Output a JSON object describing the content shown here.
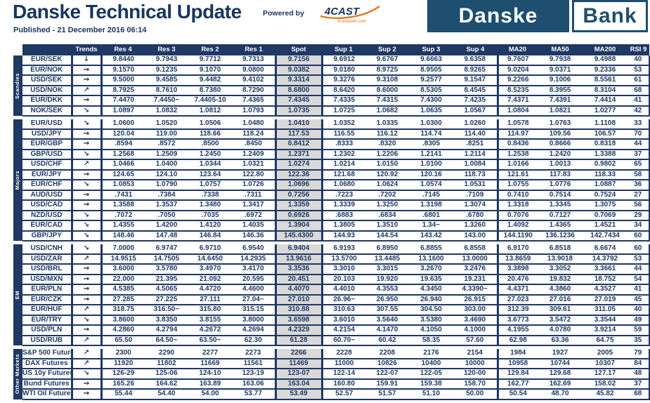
{
  "page": {
    "title": "Danske Technical Update",
    "published": "Published - 21 December 2016 06:14",
    "powered_by_label": "Powered by",
    "cast_logo": {
      "name": "4CAST",
      "sub": "4castweb.com"
    },
    "bank_logo": {
      "first": "Danske",
      "second": "Bank"
    }
  },
  "colors": {
    "navy": "#1f3864",
    "brand_blue": "#1e4e70",
    "spot_bg": "#d9d9d9",
    "arrow_red": "#c00000",
    "arrow_amber": "#ffb400",
    "arrow_green": "#57a639",
    "cast_orange": "#e87722"
  },
  "table": {
    "columns": [
      "Trends",
      "Res 4",
      "Res 3",
      "Res 2",
      "Res 1",
      "Spot",
      "Sup 1",
      "Sup 2",
      "Sup 3",
      "Sup 4",
      "MA20",
      "MA50",
      "MA200",
      "RSI 9"
    ],
    "trend_glyphs": {
      "down": "↓",
      "flat": "→",
      "up": "↗",
      "dslight": "↘"
    },
    "groups": [
      {
        "label": "Scandies",
        "rows": [
          {
            "pair": "EUR/SEK",
            "trend": "down",
            "values": [
              "9.8440",
              "9.7943",
              "9.7712",
              "9.7313",
              "9.7156",
              "9.6912",
              "9.6767",
              "9.6663",
              "9.6358",
              "9.7607",
              "9.7938",
              "9.4988",
              "40"
            ]
          },
          {
            "pair": "EUR/NOK",
            "trend": "flat",
            "values": [
              "9.1570",
              "9.1235",
              "9.1070",
              "9.0800",
              "9.0382",
              "9.0180",
              "8.9725",
              "8.9505",
              "8.9265",
              "9.0204",
              "9.0371",
              "9.2336",
              "53"
            ]
          },
          {
            "pair": "USD/SEK",
            "trend": "flat",
            "values": [
              "9.5000",
              "9.4585",
              "9.4482",
              "9.4102",
              "9.3314",
              "9.3276",
              "9.3108",
              "9.2577",
              "9.1547",
              "9.2266",
              "9.1006",
              "8.5561",
              "61"
            ]
          },
          {
            "pair": "USD/NOK",
            "trend": "up",
            "values": [
              "8.7925",
              "8.7610",
              "8.7380",
              "8.7290",
              "8.6800",
              "8.6420",
              "8.6000",
              "8.5305",
              "8.4545",
              "8.5235",
              "8.3955",
              "8.3104",
              "68"
            ]
          },
          {
            "pair": "EUR/DKK",
            "trend": "flat",
            "values": [
              "7.4470",
              "7.4450~",
              "7.4405-10",
              "7.4365",
              "7.4345",
              "7.4335",
              "7.4315",
              "7.4300",
              "7.4235",
              "7.4371",
              "7.4391",
              "7.4414",
              "41"
            ]
          },
          {
            "pair": "NOK/SEK",
            "trend": "dslight",
            "values": [
              "1.0897",
              "1.0832",
              "1.0812",
              "1.0793",
              "1.0735",
              "1.0725",
              "1.0682",
              "1.0635",
              "1.0567",
              "1.0804",
              "1.0821",
              "1.0277",
              "42"
            ]
          }
        ]
      },
      {
        "label": "Majors",
        "rows": [
          {
            "pair": "EUR/USD",
            "trend": "dslight",
            "values": [
              "1.0600",
              "1.0520",
              "1.0506",
              "1.0480",
              "1.0410",
              "1.0352",
              "1.0335",
              "1.0300",
              "1.0260",
              "1.0578",
              "1.0763",
              "1.1108",
              "33"
            ]
          },
          {
            "pair": "USD/JPY",
            "trend": "flat",
            "values": [
              "120.04",
              "119.00",
              "118.66",
              "118.24",
              "117.53",
              "116.55",
              "116.12",
              "114.74",
              "114.40",
              "114.97",
              "109.56",
              "106.57",
              "70"
            ]
          },
          {
            "pair": "EUR/GBP",
            "trend": "flat",
            "values": [
              ".8594",
              ".8572",
              ".8500",
              ".8450",
              "0.8412",
              ".8333",
              ".8320",
              ".8305",
              ".8251",
              "0.8436",
              "0.8666",
              "0.8318",
              "44"
            ]
          },
          {
            "pair": "GBP/USD",
            "trend": "dslight",
            "values": [
              "1.2568",
              "1.2509",
              "1.2450",
              "1.2409",
              "1.2371",
              "1.2302",
              "1.2206",
              "1.2141",
              "1.2114",
              "1.2538",
              "1.2420",
              "1.3388",
              "37"
            ]
          },
          {
            "pair": "USD/CHF",
            "trend": "up",
            "values": [
              "1.0466",
              "1.0400",
              "1.0344",
              "1.0321",
              "1.0274",
              "1.0214",
              "1.0150",
              "1.0100",
              "1.0084",
              "1.0166",
              "1.0013",
              "0.9802",
              "65"
            ]
          },
          {
            "pair": "EUR/JPY",
            "trend": "flat",
            "values": [
              "124.65",
              "124.10",
              "123.64",
              "122.80",
              "122.36",
              "121.68",
              "120.92",
              "120.16",
              "118.73",
              "121.61",
              "117.83",
              "118.33",
              "58"
            ]
          },
          {
            "pair": "EUR/CHF",
            "trend": "dslight",
            "values": [
              "1.0853",
              "1.0790",
              "1.0757",
              "1.0726",
              "1.0696",
              "1.0680",
              "1.0624",
              "1.0574",
              "1.0531",
              "1.0755",
              "1.0776",
              "1.0887",
              "36"
            ]
          },
          {
            "pair": "AUD/USD",
            "trend": "flat",
            "values": [
              ".7431",
              ".7384",
              ".7338",
              ".7311",
              "0.7256",
              ".7223",
              ".7202",
              ".7145",
              ".7109",
              "0.7410",
              "0.7514",
              "0.7524",
              "27"
            ]
          },
          {
            "pair": "USD/CAD",
            "trend": "flat",
            "values": [
              "1.3588",
              "1.3537",
              "1.3480",
              "1.3417",
              "1.3359",
              "1.3339",
              "1.3250",
              "1.3198",
              "1.3074",
              "1.3318",
              "1.3345",
              "1.3075",
              "56"
            ]
          },
          {
            "pair": "NZD/USD",
            "trend": "dslight",
            "values": [
              ".7072",
              ".7050",
              ".7035",
              ".6972",
              "0.6926",
              ".6883",
              ".6834",
              ".6801",
              ".6780",
              "0.7076",
              "0.7127",
              "0.7069",
              "29"
            ]
          },
          {
            "pair": "EUR/CAD",
            "trend": "dslight",
            "values": [
              "1.4355",
              "1.4200",
              "1.4120",
              "1.4035",
              "1.3904",
              "1.3805",
              "1.3510",
              "1.34~",
              "1.3260",
              "1.4092",
              "1.4365",
              "1.4521",
              "34"
            ]
          },
          {
            "pair": "GBP/JPY",
            "trend": "dslight",
            "values": [
              "148.46",
              "147.48",
              "146.84",
              "146.36",
              "145.4300",
              "144.93",
              "144.54",
              "143.42",
              "143.00",
              "144.1190",
              "136.1236",
              "142.7434",
              "60"
            ]
          }
        ]
      },
      {
        "label": "EM",
        "rows": [
          {
            "pair": "USD/CNH",
            "trend": "dslight",
            "values": [
              "7.0000",
              "6.9747",
              "6.9710",
              "6.9540",
              "6.9404",
              "6.9193",
              "6.8950",
              "6.8855",
              "6.8558",
              "6.9170",
              "6.8518",
              "6.6674",
              "60"
            ]
          },
          {
            "pair": "USD/ZAR",
            "trend": "up",
            "values": [
              "14.9515",
              "14.7505",
              "14.6450",
              "14.2935",
              "13.9616",
              "13.5700",
              "13.4485",
              "13.1600",
              "13.0000",
              "13.8659",
              "13.9018",
              "14.3792",
              "53"
            ]
          },
          {
            "pair": "USD/BRL",
            "trend": "flat",
            "values": [
              "3.6000",
              "3.5780",
              "3.4970",
              "3.4170",
              "3.3536",
              "3.3010",
              "3.3015",
              "3.2670",
              "3.2476",
              "3.3898",
              "3.3052",
              "3.3661",
              "44"
            ]
          },
          {
            "pair": "USD/MXN",
            "trend": "flat",
            "values": [
              "22.000",
              "21.395",
              "21.092",
              "20.595",
              "20.451",
              "20.103",
              "19.920",
              "19.635",
              "19.231",
              "20.476",
              "19.832",
              "18.752",
              "54"
            ]
          },
          {
            "pair": "EUR/PLN",
            "trend": "flat",
            "values": [
              "4.5385",
              "4.5065",
              "4.4720",
              "4.4600",
              "4.4070",
              "4.4010",
              "4.3553",
              "4.3450",
              "4.3390~",
              "4.4371",
              "4.3860",
              "4.3527",
              "41"
            ]
          },
          {
            "pair": "EUR/CZK",
            "trend": "flat",
            "values": [
              "27.285",
              "27.225",
              "27.111",
              "27.04~",
              "27.010",
              "26.96~",
              "26.950",
              "26.940",
              "26.915",
              "27.023",
              "27.016",
              "27.019",
              "45"
            ]
          },
          {
            "pair": "EUR/HUF",
            "trend": "up",
            "values": [
              "318.75",
              "316.50~",
              "315.80",
              "315.15",
              "310.88",
              "310.63",
              "307.55",
              "304.50",
              "303.00",
              "312.39",
              "309.61",
              "311.05",
              "40"
            ]
          },
          {
            "pair": "EUR/TRY",
            "trend": "dslight",
            "values": [
              "3.8600",
              "3.8350",
              "3.8155",
              "3.8000",
              "3.6598",
              "3.6010",
              "3.5640",
              "3.5380",
              "3.4690",
              "3.6773",
              "3.5472",
              "3.3544",
              "49"
            ]
          },
          {
            "pair": "USD/PLN",
            "trend": "flat",
            "values": [
              "4.2860",
              "4.2794",
              "4.2672",
              "4.2694",
              "4.2329",
              "4.2154",
              "4.1470",
              "4.1050",
              "4.1000",
              "4.1955",
              "4.0780",
              "3.9214",
              "59"
            ]
          },
          {
            "pair": "USD/RUB",
            "trend": "up",
            "values": [
              "65.50",
              "64.50~",
              "63.50~",
              "62.30",
              "61.28",
              "60.70~",
              "60.42",
              "58.35",
              "57.60",
              "62.98",
              "63.36",
              "64.75",
              "35"
            ]
          }
        ]
      },
      {
        "label": "Other Markets",
        "rows": [
          {
            "pair": "S&P 500 Futures",
            "trend": "up",
            "values": [
              "2300",
              "2290",
              "2277",
              "2273",
              "2266",
              "2228",
              "2208",
              "2176",
              "2154",
              "1984",
              "1927",
              "2005",
              "79"
            ]
          },
          {
            "pair": "DAX Futures",
            "trend": "up",
            "values": [
              "11920",
              "11802",
              "11669",
              "11561",
              "11469",
              "11000",
              "10826",
              "10400",
              "10000",
              "10958",
              "10744",
              "10307",
              "84"
            ]
          },
          {
            "pair": "US 10y Futures",
            "trend": "dslight",
            "values": [
              "126-29",
              "125-06",
              "124-10",
              "123-19",
              "123-07",
              "122-14",
              "122-07",
              "122-05",
              "120-00",
              "129.84",
              "129.68",
              "127.17",
              "48"
            ]
          },
          {
            "pair": "Bund Futures",
            "trend": "flat",
            "values": [
              "165.26",
              "164.62",
              "163.89",
              "163.06",
              "163.04",
              "160.80",
              "159.91",
              "159.38",
              "158.70",
              "162.77",
              "162.69",
              "158.02",
              "37"
            ]
          },
          {
            "pair": "WTI Oil Futures",
            "trend": "flat",
            "values": [
              "55.44",
              "54.40",
              "54.00",
              "53.77",
              "53.49",
              "52.57",
              "51.57",
              "51.10",
              "50.00",
              "50.54",
              "48.70",
              "45.82",
              "68"
            ]
          }
        ]
      }
    ]
  }
}
